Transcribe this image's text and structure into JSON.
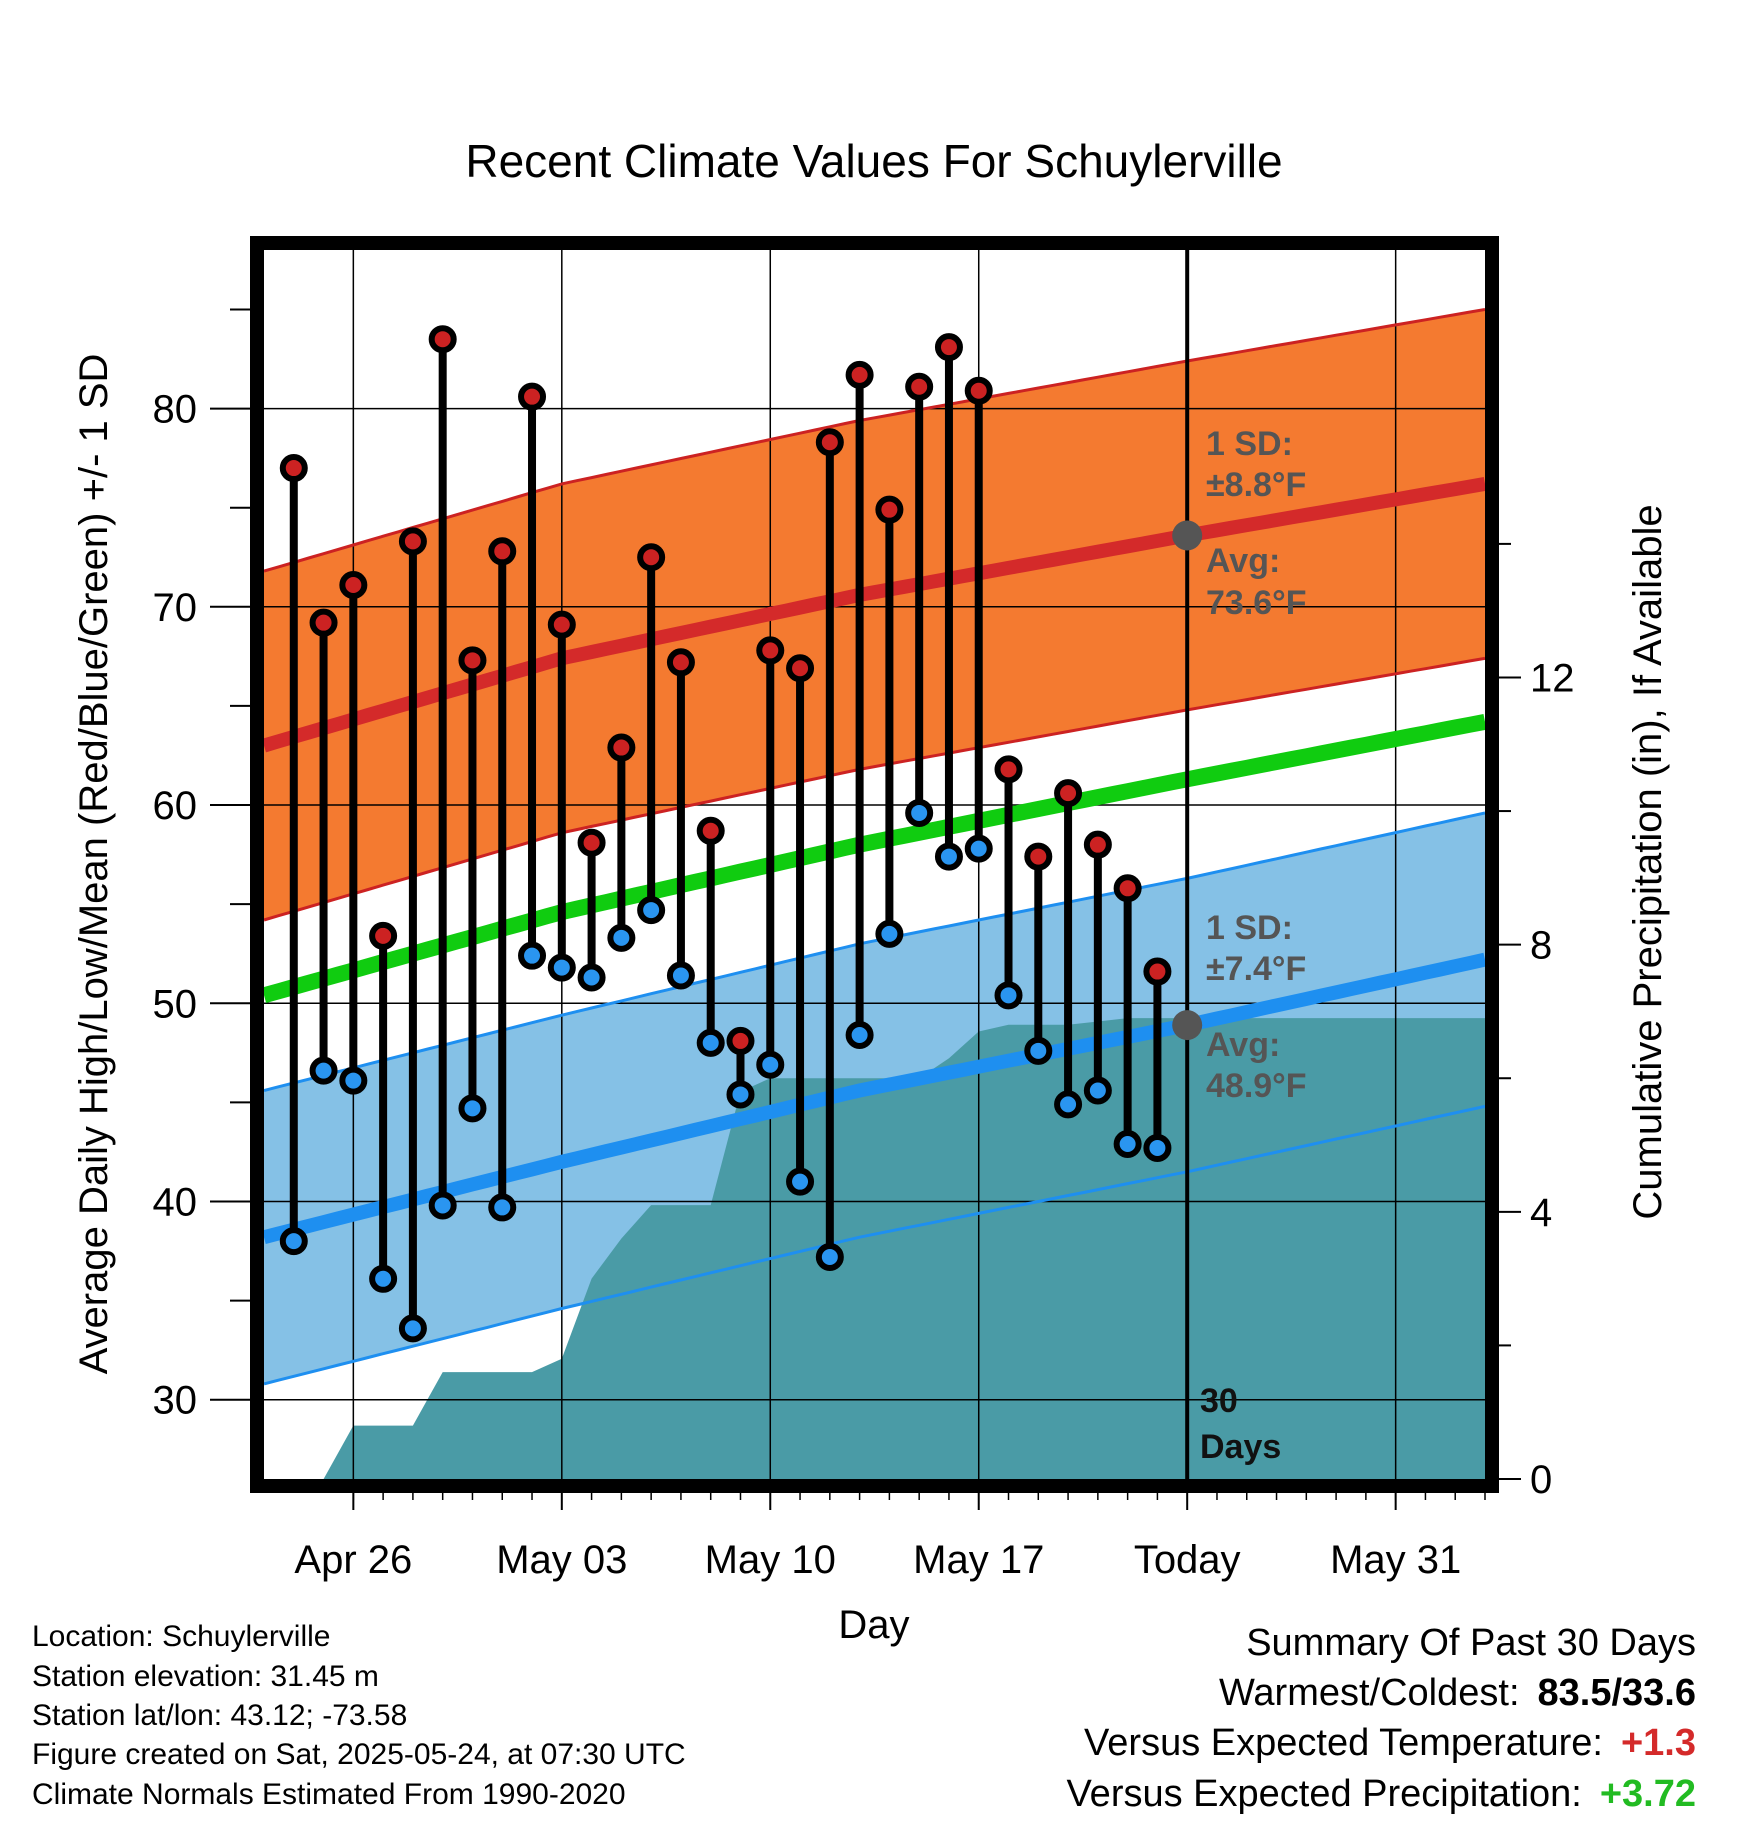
{
  "title": "Recent Climate Values For Schuylerville",
  "metadata": {
    "location": "Location: Schuylerville",
    "elevation": "Station elevation: 31.45 m",
    "latlon": "Station lat/lon: 43.12; -73.58",
    "created": "Figure created on Sat, 2025-05-24, at 07:30 UTC",
    "normals": "Climate Normals Estimated From 1990-2020"
  },
  "summary": {
    "heading": "Summary Of Past 30 Days",
    "warmest_coldest_label": "Warmest/Coldest:",
    "warmest_coldest_value": "83.5/33.6",
    "temp_label": "Versus Expected Temperature:",
    "temp_value": "+1.3",
    "precip_label": "Versus Expected Precipitation:",
    "precip_value": "+3.72"
  },
  "colors": {
    "high_band": "#f47a30",
    "low_band": "#85c1e6",
    "high_line": "#d42a2a",
    "low_line": "#1e8ff0",
    "mean_line": "#10cc10",
    "precip": "#4a9ba6",
    "high_dot": "#cc2222",
    "low_dot": "#2a95f0",
    "warm_value": "#d42a2a",
    "precip_value": "#22bb22"
  },
  "chart_data": {
    "type": "line",
    "xlabel": "Day",
    "ylabel": "Average Daily High/Low/Mean (Red/Blue/Green) +/- 1 SD",
    "y2label": "Cumulative Precipitation (in), If Available",
    "xlim": [
      "2025-04-23",
      "2025-06-03"
    ],
    "ylim": [
      26,
      88
    ],
    "y2lim": [
      0,
      18.4
    ],
    "grid": true,
    "x_ticks": [
      {
        "date": "2025-04-26",
        "label": "Apr 26"
      },
      {
        "date": "2025-05-03",
        "label": "May 03"
      },
      {
        "date": "2025-05-10",
        "label": "May 10"
      },
      {
        "date": "2025-05-17",
        "label": "May 17"
      },
      {
        "date": "2025-05-24",
        "label": "Today"
      },
      {
        "date": "2025-05-31",
        "label": "May 31"
      }
    ],
    "y_ticks": [
      30,
      40,
      50,
      60,
      70,
      80
    ],
    "y2_ticks": [
      0,
      4,
      8,
      12
    ],
    "daily": {
      "dates": [
        "2025-04-24",
        "2025-04-25",
        "2025-04-26",
        "2025-04-27",
        "2025-04-28",
        "2025-04-29",
        "2025-04-30",
        "2025-05-01",
        "2025-05-02",
        "2025-05-03",
        "2025-05-04",
        "2025-05-05",
        "2025-05-06",
        "2025-05-07",
        "2025-05-08",
        "2025-05-09",
        "2025-05-10",
        "2025-05-11",
        "2025-05-12",
        "2025-05-13",
        "2025-05-14",
        "2025-05-15",
        "2025-05-16",
        "2025-05-17",
        "2025-05-18",
        "2025-05-19",
        "2025-05-20",
        "2025-05-21",
        "2025-05-22",
        "2025-05-23"
      ],
      "high": [
        77.0,
        69.2,
        71.1,
        53.4,
        73.3,
        83.5,
        67.3,
        72.8,
        80.6,
        69.1,
        58.1,
        62.9,
        72.5,
        67.2,
        58.7,
        48.1,
        67.8,
        66.9,
        78.3,
        81.7,
        74.9,
        81.1,
        83.1,
        80.9,
        61.8,
        57.4,
        60.6,
        58.0,
        55.8,
        51.6
      ],
      "low": [
        38.0,
        46.6,
        46.1,
        36.1,
        33.6,
        39.8,
        44.7,
        39.7,
        52.4,
        51.8,
        51.3,
        53.3,
        54.7,
        51.4,
        48.0,
        45.4,
        46.9,
        41.0,
        37.2,
        48.4,
        53.5,
        59.6,
        57.4,
        57.8,
        50.4,
        47.6,
        44.9,
        45.6,
        42.9,
        42.7
      ]
    },
    "normals": {
      "dates": [
        "2025-04-23",
        "2025-05-03",
        "2025-05-13",
        "2025-05-24",
        "2025-06-03"
      ],
      "avg_high": [
        63.0,
        67.4,
        70.6,
        73.6,
        76.2
      ],
      "avg_low": [
        38.2,
        42.0,
        45.6,
        48.9,
        52.2
      ],
      "avg_mean": [
        50.4,
        54.6,
        58.0,
        61.3,
        64.2
      ],
      "high_sd": 8.8,
      "low_sd": 7.4
    },
    "precipitation": {
      "x": [
        "2025-04-25",
        "2025-04-26",
        "2025-04-27",
        "2025-04-28",
        "2025-04-29",
        "2025-04-30",
        "2025-05-01",
        "2025-05-02",
        "2025-05-03",
        "2025-05-04",
        "2025-05-05",
        "2025-05-06",
        "2025-05-07",
        "2025-05-08",
        "2025-05-09",
        "2025-05-10",
        "2025-05-11",
        "2025-05-12",
        "2025-05-13",
        "2025-05-14",
        "2025-05-15",
        "2025-05-16",
        "2025-05-17",
        "2025-05-18",
        "2025-05-19",
        "2025-05-20",
        "2025-05-21",
        "2025-05-22",
        "2025-05-23",
        "2025-05-24",
        "2025-06-03"
      ],
      "cumulative": [
        0.0,
        0.8,
        0.8,
        0.8,
        1.6,
        1.6,
        1.6,
        1.6,
        1.8,
        3.0,
        3.6,
        4.1,
        4.1,
        4.1,
        5.8,
        6.0,
        6.0,
        6.0,
        6.0,
        6.0,
        6.0,
        6.3,
        6.7,
        6.8,
        6.8,
        6.8,
        6.85,
        6.9,
        6.9,
        6.9,
        6.9
      ]
    },
    "annotations": {
      "today_date": "2025-05-24",
      "high_sd_label": "1 SD:",
      "high_sd_value": "±8.8°F",
      "high_avg_label": "Avg:",
      "high_avg_value": "73.6°F",
      "low_sd_label": "1 SD:",
      "low_sd_value": "±7.4°F",
      "low_avg_label": "Avg:",
      "low_avg_value": "48.9°F",
      "days_label": "30",
      "days_label2": "Days"
    }
  }
}
